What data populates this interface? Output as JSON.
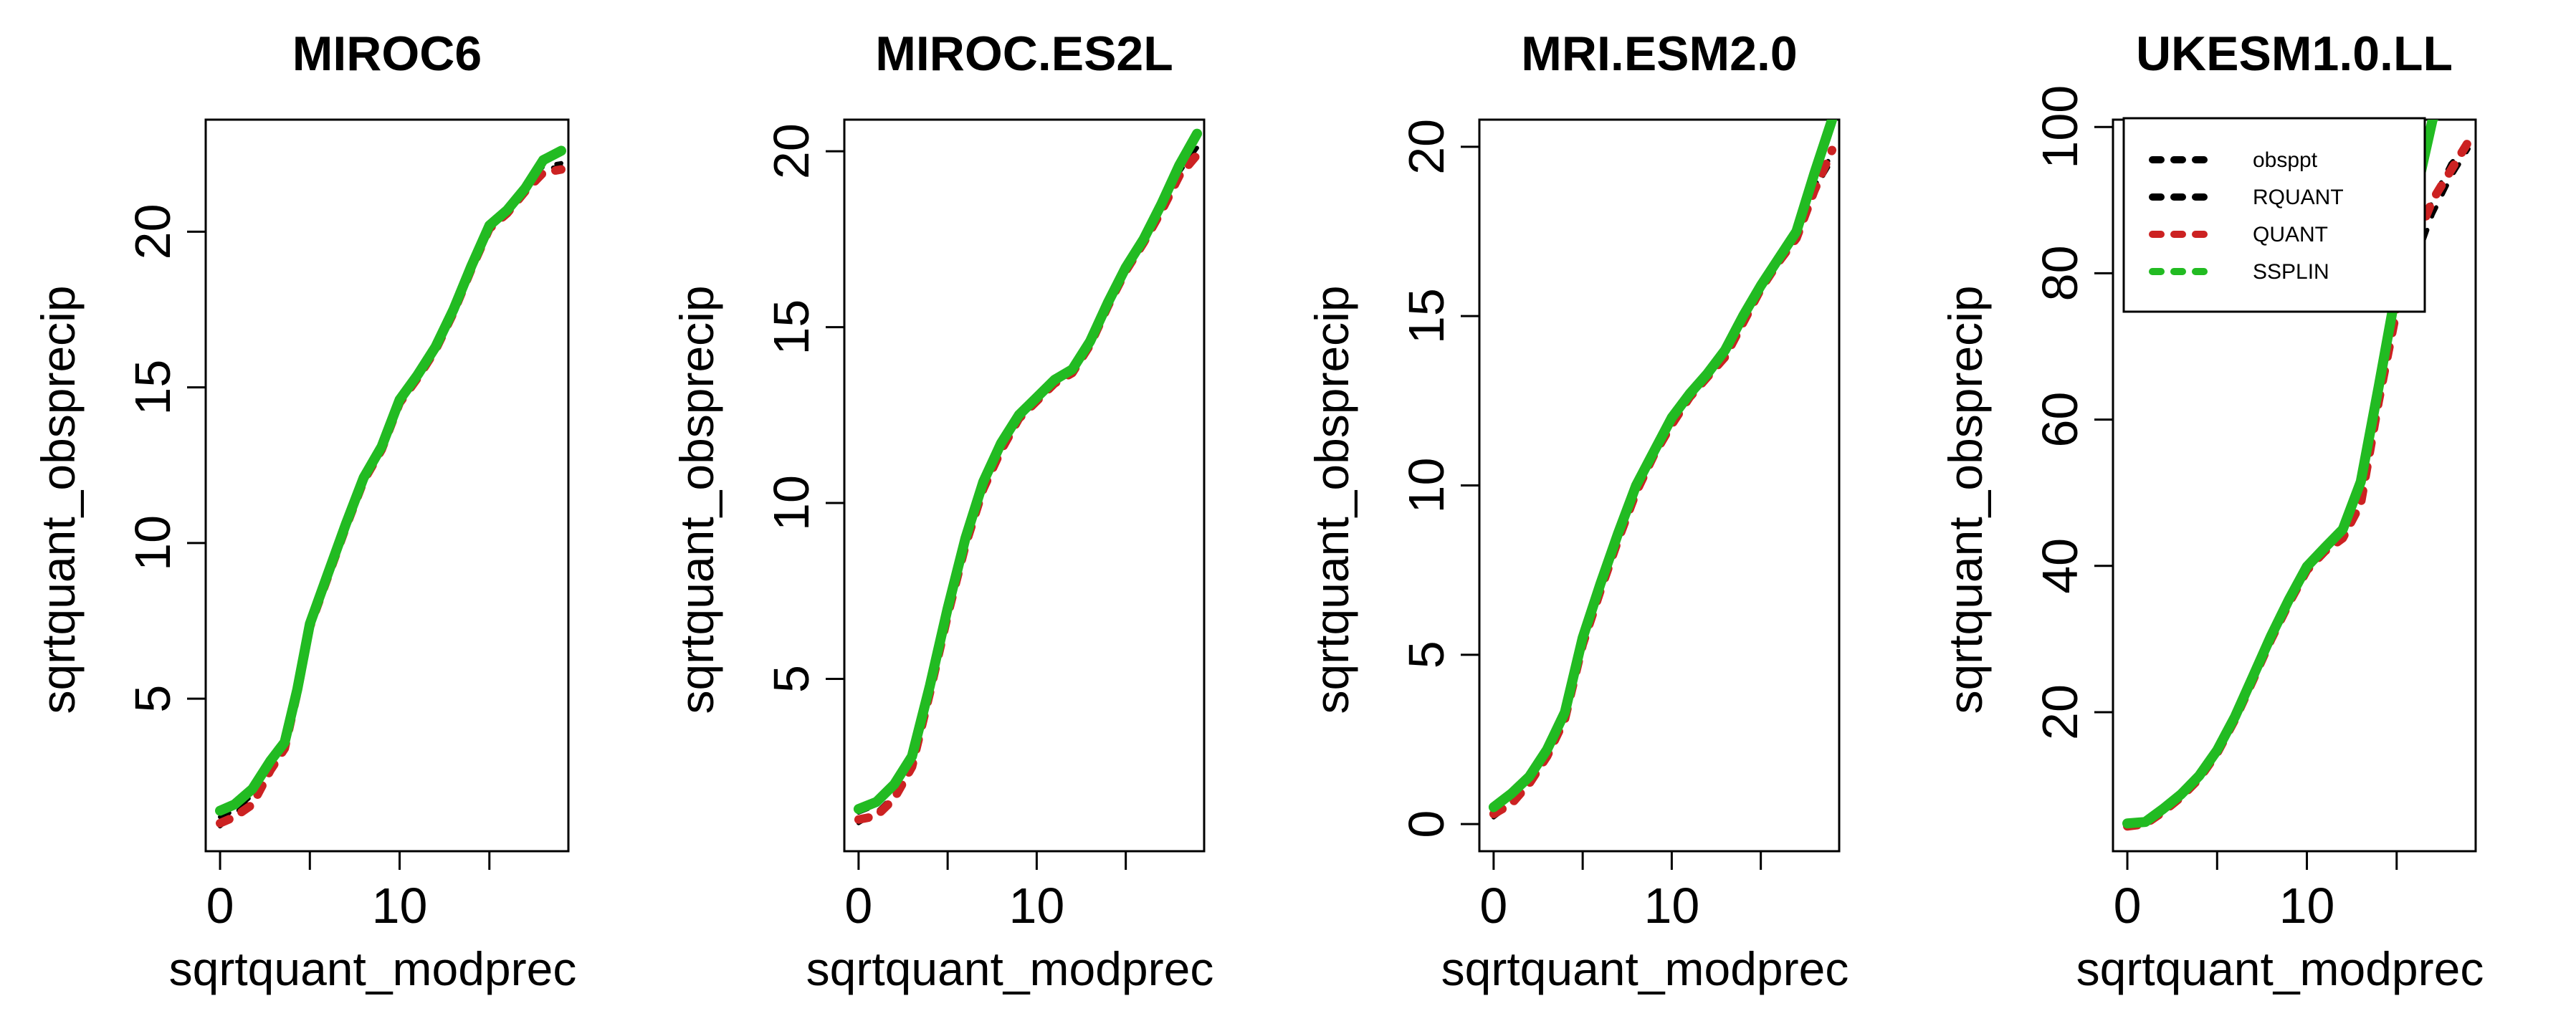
{
  "chart_data": [
    {
      "type": "line",
      "title": "MIROC6",
      "xlabel": "sqrtquant_modprec",
      "ylabel": "sqrtquant_obsprecip",
      "xlim": [
        -0.8,
        19.4
      ],
      "ylim": [
        0.1,
        23.6
      ],
      "xticks": [
        0,
        5,
        10,
        15
      ],
      "xticklabels": [
        "0",
        "",
        "10",
        ""
      ],
      "yticks": [
        5,
        10,
        15,
        20
      ],
      "yticklabels": [
        "5",
        "10",
        "15",
        "20"
      ],
      "series": [
        {
          "name": "obsppt",
          "color": "#000000",
          "x": [
            0,
            0.8,
            1.8,
            2.8,
            3.6,
            4.3,
            5.0,
            6.0,
            7.0,
            8.0,
            9.0,
            10.0,
            11.0,
            12.0,
            13.0,
            14.0,
            15.0,
            16.0,
            17.0,
            18.0,
            19.0
          ],
          "y": [
            0.9,
            1.3,
            1.8,
            2.8,
            3.4,
            5.2,
            7.3,
            8.9,
            10.5,
            12.0,
            13.0,
            14.5,
            15.3,
            16.2,
            17.4,
            18.8,
            20.1,
            20.6,
            21.3,
            22.0,
            22.1
          ]
        },
        {
          "name": "RQUANT",
          "color": "#000000",
          "x": [
            0,
            0.8,
            1.8,
            2.8,
            3.6,
            4.3,
            5.0,
            6.0,
            7.0,
            8.0,
            9.0,
            10.0,
            11.0,
            12.0,
            13.0,
            14.0,
            15.0,
            16.0,
            17.0,
            18.0,
            19.0
          ],
          "y": [
            1.2,
            1.4,
            1.9,
            2.9,
            3.5,
            5.3,
            7.4,
            9.0,
            10.6,
            12.1,
            13.1,
            14.6,
            15.4,
            16.3,
            17.5,
            18.9,
            20.2,
            20.7,
            21.4,
            22.1,
            22.2
          ]
        },
        {
          "name": "QUANT",
          "color": "#cc2222",
          "x": [
            0,
            0.8,
            1.8,
            2.8,
            3.6,
            4.3,
            5.0,
            6.0,
            7.0,
            8.0,
            9.0,
            10.0,
            11.0,
            12.0,
            13.0,
            14.0,
            15.0,
            16.0,
            17.0,
            18.0,
            19.0
          ],
          "y": [
            1.0,
            1.2,
            1.6,
            2.7,
            3.4,
            5.2,
            7.3,
            8.9,
            10.5,
            12.0,
            13.0,
            14.5,
            15.3,
            16.2,
            17.4,
            18.8,
            20.1,
            20.6,
            21.3,
            21.9,
            22.0
          ]
        },
        {
          "name": "SSPLIN",
          "color": "#22bb22",
          "x": [
            0,
            0.8,
            1.8,
            2.8,
            3.6,
            4.3,
            5.0,
            6.0,
            7.0,
            8.0,
            9.0,
            10.0,
            11.0,
            12.0,
            13.0,
            14.0,
            15.0,
            16.0,
            17.0,
            18.0,
            19.0
          ],
          "y": [
            1.4,
            1.6,
            2.1,
            3.0,
            3.6,
            5.3,
            7.4,
            9.0,
            10.6,
            12.1,
            13.1,
            14.6,
            15.4,
            16.3,
            17.5,
            18.9,
            20.2,
            20.7,
            21.4,
            22.3,
            22.6
          ]
        }
      ]
    },
    {
      "type": "line",
      "title": "MIROC.ES2L",
      "xlabel": "sqrtquant_modprec",
      "ylabel": "sqrtquant_obsprecip",
      "xlim": [
        -0.8,
        19.4
      ],
      "ylim": [
        0.1,
        20.9
      ],
      "xticks": [
        0,
        5,
        10,
        15
      ],
      "xticklabels": [
        "0",
        "",
        "10",
        ""
      ],
      "yticks": [
        5,
        10,
        15,
        20
      ],
      "yticklabels": [
        "5",
        "10",
        "15",
        "20"
      ],
      "series": [
        {
          "name": "obsppt",
          "color": "#000000",
          "x": [
            0,
            1.0,
            2.0,
            3.0,
            4.0,
            5.0,
            6.0,
            7.0,
            8.0,
            9.0,
            10.0,
            11.0,
            12.0,
            13.0,
            14.0,
            15.0,
            16.0,
            17.0,
            18.0,
            19.0
          ],
          "y": [
            0.9,
            1.2,
            1.7,
            2.6,
            4.6,
            6.8,
            8.8,
            10.4,
            11.5,
            12.4,
            12.9,
            13.4,
            13.7,
            14.5,
            15.6,
            16.6,
            17.4,
            18.3,
            19.3,
            20.0
          ]
        },
        {
          "name": "RQUANT",
          "color": "#000000",
          "x": [
            0,
            1.0,
            2.0,
            3.0,
            4.0,
            5.0,
            6.0,
            7.0,
            8.0,
            9.0,
            10.0,
            11.0,
            12.0,
            13.0,
            14.0,
            15.0,
            16.0,
            17.0,
            18.0,
            19.0
          ],
          "y": [
            1.2,
            1.4,
            1.9,
            2.7,
            4.7,
            6.9,
            8.9,
            10.5,
            11.6,
            12.5,
            13.0,
            13.5,
            13.8,
            14.6,
            15.7,
            16.7,
            17.5,
            18.4,
            19.4,
            20.1
          ]
        },
        {
          "name": "QUANT",
          "color": "#cc2222",
          "x": [
            0,
            1.0,
            2.0,
            3.0,
            4.0,
            5.0,
            6.0,
            7.0,
            8.0,
            9.0,
            10.0,
            11.0,
            12.0,
            13.0,
            14.0,
            15.0,
            16.0,
            17.0,
            18.0,
            19.0
          ],
          "y": [
            1.0,
            1.1,
            1.6,
            2.5,
            4.6,
            6.8,
            8.8,
            10.4,
            11.5,
            12.4,
            12.9,
            13.4,
            13.7,
            14.5,
            15.6,
            16.6,
            17.4,
            18.3,
            19.3,
            19.9
          ]
        },
        {
          "name": "SSPLIN",
          "color": "#22bb22",
          "x": [
            0,
            1.0,
            2.0,
            3.0,
            4.0,
            5.0,
            6.0,
            7.0,
            8.0,
            9.0,
            10.0,
            11.0,
            12.0,
            13.0,
            14.0,
            15.0,
            16.0,
            17.0,
            18.0,
            19.0
          ],
          "y": [
            1.3,
            1.5,
            2.0,
            2.8,
            4.8,
            7.0,
            9.0,
            10.6,
            11.7,
            12.5,
            13.0,
            13.5,
            13.8,
            14.6,
            15.7,
            16.7,
            17.5,
            18.5,
            19.6,
            20.5
          ]
        }
      ]
    },
    {
      "type": "line",
      "title": "MRI.ESM2.0",
      "xlabel": "sqrtquant_modprec",
      "ylabel": "sqrtquant_obsprecip",
      "xlim": [
        -0.8,
        19.4
      ],
      "ylim": [
        -0.8,
        20.8
      ],
      "xticks": [
        0,
        5,
        10,
        15
      ],
      "xticklabels": [
        "0",
        "",
        "10",
        ""
      ],
      "yticks": [
        0,
        5,
        10,
        15,
        20
      ],
      "yticklabels": [
        "0",
        "5",
        "10",
        "15",
        "20"
      ],
      "series": [
        {
          "name": "obsppt",
          "color": "#000000",
          "x": [
            0,
            1.0,
            2.0,
            3.0,
            4.0,
            5.0,
            6.0,
            7.0,
            8.0,
            9.0,
            10.0,
            11.0,
            12.0,
            13.0,
            14.0,
            15.0,
            16.0,
            17.0,
            18.0,
            19.0
          ],
          "y": [
            0.2,
            0.6,
            1.2,
            2.0,
            3.1,
            5.3,
            6.9,
            8.4,
            9.8,
            10.9,
            11.8,
            12.6,
            13.2,
            13.8,
            14.8,
            15.8,
            16.6,
            17.3,
            18.7,
            19.6
          ]
        },
        {
          "name": "RQUANT",
          "color": "#000000",
          "x": [
            0,
            1.0,
            2.0,
            3.0,
            4.0,
            5.0,
            6.0,
            7.0,
            8.0,
            9.0,
            10.0,
            11.0,
            12.0,
            13.0,
            14.0,
            15.0,
            16.0,
            17.0,
            18.0,
            19.0
          ],
          "y": [
            0.4,
            0.8,
            1.3,
            2.1,
            3.2,
            5.4,
            7.0,
            8.5,
            9.9,
            11.0,
            11.9,
            12.7,
            13.3,
            13.9,
            14.9,
            15.9,
            16.7,
            17.4,
            18.8,
            19.8
          ]
        },
        {
          "name": "QUANT",
          "color": "#cc2222",
          "x": [
            0,
            1.0,
            2.0,
            3.0,
            4.0,
            5.0,
            6.0,
            7.0,
            8.0,
            9.0,
            10.0,
            11.0,
            12.0,
            13.0,
            14.0,
            15.0,
            16.0,
            17.0,
            18.0,
            19.0
          ],
          "y": [
            0.3,
            0.6,
            1.2,
            2.0,
            3.1,
            5.3,
            6.9,
            8.4,
            9.8,
            10.9,
            11.8,
            12.6,
            13.2,
            13.8,
            14.8,
            15.8,
            16.6,
            17.3,
            18.7,
            19.9
          ]
        },
        {
          "name": "SSPLIN",
          "color": "#22bb22",
          "x": [
            0,
            1.0,
            2.0,
            3.0,
            4.0,
            5.0,
            6.0,
            7.0,
            8.0,
            9.0,
            10.0,
            11.0,
            12.0,
            13.0,
            14.0,
            15.0,
            16.0,
            17.0,
            18.0,
            19.0
          ],
          "y": [
            0.5,
            0.9,
            1.4,
            2.2,
            3.3,
            5.5,
            7.1,
            8.6,
            10.0,
            11.0,
            12.0,
            12.7,
            13.3,
            14.0,
            15.0,
            15.9,
            16.7,
            17.5,
            19.2,
            20.8
          ]
        }
      ]
    },
    {
      "type": "line",
      "title": "UKESM1.0.LL",
      "xlabel": "sqrtquant_modprec",
      "ylabel": "sqrtquant_obsprecip",
      "xlim": [
        -0.8,
        19.4
      ],
      "ylim": [
        1,
        101
      ],
      "xticks": [
        0,
        5,
        10,
        15
      ],
      "xticklabels": [
        "0",
        "",
        "10",
        ""
      ],
      "yticks": [
        20,
        40,
        60,
        80,
        100
      ],
      "yticklabels": [
        "20",
        "40",
        "60",
        "80",
        "100"
      ],
      "legend": {
        "position": "top-right",
        "entries": [
          {
            "label": "obsppt",
            "color": "#000000"
          },
          {
            "label": "RQUANT",
            "color": "#000000"
          },
          {
            "label": "QUANT",
            "color": "#cc2222"
          },
          {
            "label": "SSPLIN",
            "color": "#22bb22"
          }
        ]
      },
      "series": [
        {
          "name": "obsppt",
          "color": "#000000",
          "x": [
            0,
            1.0,
            2.0,
            3.0,
            4.0,
            5.0,
            6.0,
            7.0,
            8.0,
            9.0,
            10.0,
            11.0,
            12.0,
            13.0,
            14.0,
            15.0,
            16.0,
            17.0,
            18.0,
            19.0
          ],
          "y": [
            4.5,
            4.8,
            6.5,
            8.5,
            11.0,
            14.5,
            19.0,
            24.5,
            30.0,
            35.0,
            39.5,
            42.0,
            44.0,
            49.0,
            62.0,
            74.0,
            81.0,
            88.0,
            93.0,
            97.0
          ]
        },
        {
          "name": "RQUANT",
          "color": "#000000",
          "x": [
            0,
            1.0,
            2.0,
            3.0,
            4.0,
            5.0,
            6.0,
            7.0,
            8.0,
            9.0,
            10.0,
            11.0,
            12.0,
            13.0,
            14.0,
            15.0,
            16.0,
            17.0,
            18.0,
            19.0
          ],
          "y": [
            4.6,
            4.9,
            6.6,
            8.6,
            11.1,
            14.6,
            19.2,
            24.7,
            30.2,
            35.2,
            39.7,
            42.3,
            44.4,
            49.5,
            62.5,
            75.0,
            83.0,
            90.0,
            95.0,
            97.5
          ]
        },
        {
          "name": "QUANT",
          "color": "#cc2222",
          "x": [
            0,
            1.0,
            2.0,
            3.0,
            4.0,
            5.0,
            6.0,
            7.0,
            8.0,
            9.0,
            10.0,
            11.0,
            12.0,
            13.0,
            14.0,
            15.0,
            16.0,
            17.0,
            18.0,
            19.0
          ],
          "y": [
            4.4,
            4.7,
            6.4,
            8.4,
            10.9,
            14.4,
            19.0,
            24.4,
            29.9,
            34.9,
            39.4,
            42.0,
            43.8,
            48.5,
            62.5,
            75.0,
            84.0,
            90.0,
            94.0,
            98.0
          ]
        },
        {
          "name": "SSPLIN",
          "color": "#22bb22",
          "x": [
            0,
            1.0,
            2.0,
            3.0,
            4.0,
            5.0,
            6.0,
            7.0,
            8.0,
            9.0,
            10.0,
            11.0,
            12.0,
            13.0,
            14.0,
            15.0,
            16.0,
            17.0,
            18.0,
            19.0
          ],
          "y": [
            4.8,
            5.0,
            6.8,
            8.8,
            11.3,
            14.8,
            19.4,
            24.9,
            30.4,
            35.4,
            39.9,
            42.5,
            45.0,
            51.5,
            64.5,
            78.0,
            90.0,
            101.0,
            105.0,
            108.0
          ]
        }
      ]
    }
  ]
}
